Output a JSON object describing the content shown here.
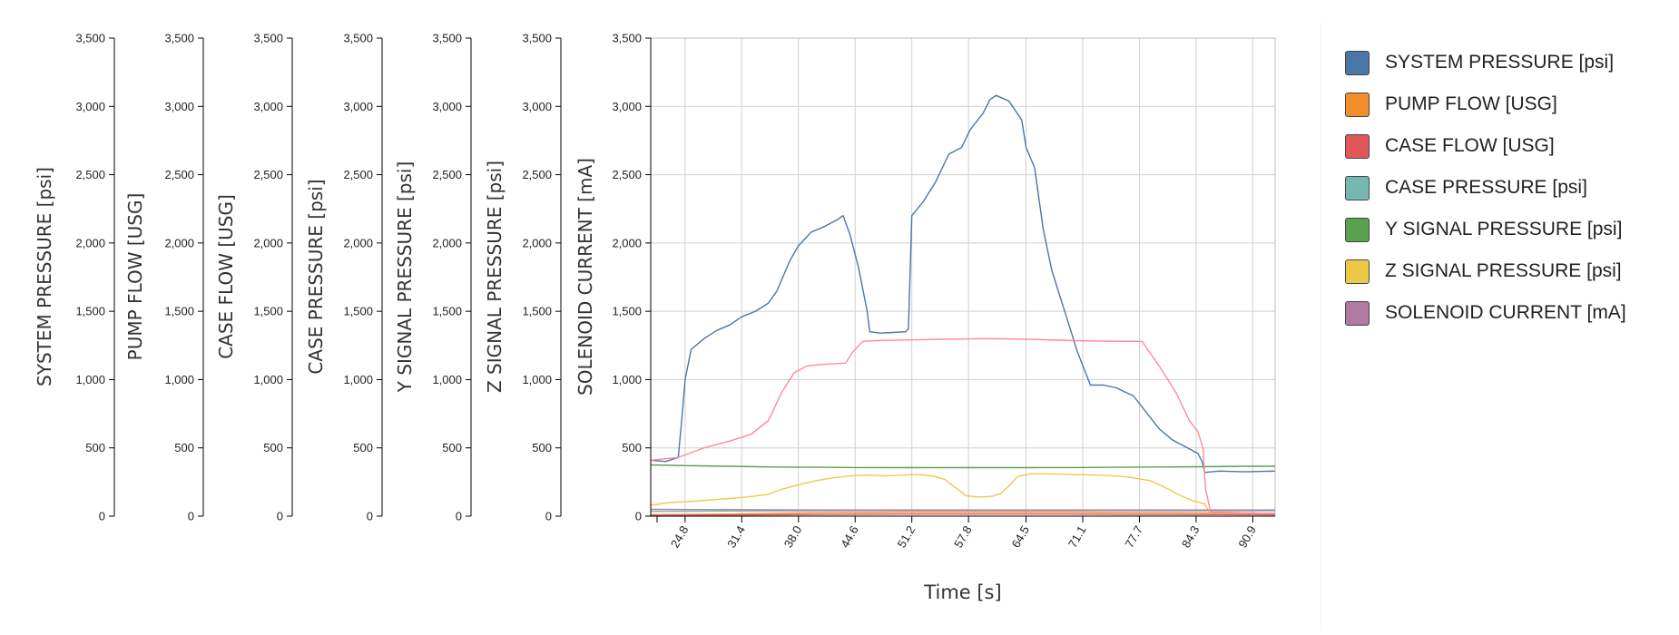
{
  "chart_data": {
    "type": "line",
    "xlabel": "Time [s]",
    "x_ticks": [
      "24.8",
      "31.4",
      "38.0",
      "44.6",
      "51.2",
      "57.8",
      "64.5",
      "71.1",
      "77.7",
      "84.3",
      "90.9"
    ],
    "xlim": [
      20.8,
      93.5
    ],
    "ylim": [
      0,
      3500
    ],
    "y_ticks": [
      "0",
      "500",
      "1,000",
      "1,500",
      "2,000",
      "2,500",
      "3,000",
      "3,500"
    ],
    "grid": true,
    "legend_position": "right",
    "y_axes": [
      {
        "label": "SYSTEM PRESSURE [psi]"
      },
      {
        "label": "PUMP FLOW [USG]"
      },
      {
        "label": "CASE FLOW [USG]"
      },
      {
        "label": "CASE PRESSURE [psi]"
      },
      {
        "label": "Y SIGNAL PRESSURE [psi]"
      },
      {
        "label": "Z SIGNAL PRESSURE [psi]"
      },
      {
        "label": "SOLENOID CURRENT [mA]"
      }
    ],
    "series": [
      {
        "name": "SYSTEM PRESSURE [psi]",
        "color": "#4a76a8",
        "x": [
          20.8,
          22.5,
          24.0,
          24.4,
          24.8,
          25.5,
          27.0,
          28.5,
          30.0,
          31.4,
          33.0,
          34.5,
          35.5,
          37.0,
          38.0,
          39.5,
          41.0,
          42.5,
          43.2,
          44.0,
          45.0,
          46.0,
          46.3,
          47.5,
          49.0,
          50.5,
          50.8,
          51.2,
          52.5,
          54.0,
          55.5,
          57.0,
          58.0,
          59.5,
          60.3,
          61.0,
          62.5,
          64.0,
          64.5,
          65.5,
          66.5,
          67.5,
          69.0,
          70.5,
          72.0,
          73.5,
          75.0,
          77.0,
          78.5,
          80.0,
          81.5,
          83.0,
          84.5,
          85.0,
          85.3,
          87.0,
          90.0,
          93.5
        ],
        "y": [
          410,
          400,
          430,
          700,
          1000,
          1220,
          1300,
          1360,
          1400,
          1460,
          1500,
          1560,
          1650,
          1870,
          1980,
          2080,
          2120,
          2170,
          2200,
          2060,
          1820,
          1500,
          1350,
          1340,
          1345,
          1350,
          1370,
          2200,
          2300,
          2450,
          2650,
          2700,
          2830,
          2950,
          3050,
          3080,
          3040,
          2900,
          2700,
          2550,
          2100,
          1800,
          1500,
          1200,
          960,
          960,
          940,
          880,
          760,
          640,
          560,
          510,
          460,
          400,
          320,
          330,
          325,
          330
        ]
      },
      {
        "name": "PUMP FLOW [USG]",
        "color": "#f28e2b",
        "x": [
          20.8,
          30,
          40,
          50,
          60,
          70,
          80,
          93.5
        ],
        "y": [
          10,
          15,
          25,
          30,
          30,
          30,
          25,
          20
        ]
      },
      {
        "name": "CASE FLOW [USG]",
        "color": "#e15759",
        "x": [
          20.8,
          30,
          40,
          50,
          60,
          70,
          80,
          93.5
        ],
        "y": [
          5,
          8,
          12,
          15,
          15,
          15,
          12,
          10
        ]
      },
      {
        "name": "CASE PRESSURE [psi]",
        "color": "#76b7b2",
        "x": [
          20.8,
          30,
          40,
          50,
          60,
          70,
          80,
          93.5
        ],
        "y": [
          35,
          38,
          40,
          42,
          42,
          42,
          40,
          40
        ]
      },
      {
        "name": "Y SIGNAL PRESSURE [psi]",
        "color": "#59a14f",
        "x": [
          20.8,
          25,
          30,
          35,
          40,
          45,
          50,
          55,
          60,
          65,
          70,
          75,
          80,
          85,
          90,
          93.5
        ],
        "y": [
          375,
          370,
          365,
          360,
          358,
          356,
          355,
          355,
          355,
          355,
          356,
          358,
          360,
          362,
          365,
          365
        ]
      },
      {
        "name": "Z SIGNAL PRESSURE [psi]",
        "color": "#edc948",
        "x": [
          20.8,
          23,
          26,
          29,
          32,
          34.5,
          36,
          38,
          40,
          42,
          44,
          46,
          48,
          50,
          52,
          53.5,
          55,
          56.5,
          57.5,
          59,
          60.5,
          61.5,
          62.5,
          63.5,
          65,
          67,
          70,
          73,
          76,
          79,
          81,
          82.5,
          84,
          85.3,
          85.8,
          93.5
        ],
        "y": [
          80,
          100,
          110,
          125,
          140,
          160,
          195,
          230,
          260,
          280,
          295,
          300,
          295,
          300,
          305,
          295,
          270,
          200,
          150,
          140,
          145,
          165,
          220,
          290,
          310,
          310,
          305,
          300,
          290,
          260,
          200,
          150,
          110,
          90,
          30,
          20
        ]
      },
      {
        "name": "SOLENOID CURRENT [mA]",
        "color": "#b07aa1",
        "x": [
          20.8,
          30,
          40,
          50,
          60,
          70,
          80,
          93.5
        ],
        "y": [
          50,
          48,
          45,
          45,
          45,
          45,
          45,
          45
        ]
      },
      {
        "name": "",
        "color": "#ff8a9a",
        "x": [
          20.8,
          24.0,
          27.0,
          30.0,
          32.5,
          34.5,
          36.0,
          37.5,
          39.0,
          40.5,
          42.0,
          43.5,
          44.3,
          45.5,
          47.0,
          50.0,
          55.0,
          60.0,
          65.0,
          70.0,
          75.0,
          78.0,
          80.0,
          82.0,
          83.5,
          84.5,
          85.1,
          85.4,
          86.0,
          93.5
        ],
        "y": [
          410,
          430,
          500,
          550,
          600,
          700,
          900,
          1050,
          1100,
          1110,
          1115,
          1120,
          1200,
          1280,
          1285,
          1290,
          1295,
          1300,
          1295,
          1285,
          1280,
          1280,
          1100,
          900,
          700,
          620,
          500,
          200,
          30,
          20
        ]
      }
    ]
  },
  "legend": {
    "items": [
      {
        "label": "SYSTEM PRESSURE [psi]",
        "color": "#4a76a8"
      },
      {
        "label": "PUMP FLOW [USG]",
        "color": "#f28e2b"
      },
      {
        "label": "CASE FLOW [USG]",
        "color": "#e15759"
      },
      {
        "label": "CASE PRESSURE [psi]",
        "color": "#76b7b2"
      },
      {
        "label": "Y SIGNAL PRESSURE [psi]",
        "color": "#59a14f"
      },
      {
        "label": "Z SIGNAL PRESSURE [psi]",
        "color": "#edc948"
      },
      {
        "label": "SOLENOID CURRENT [mA]",
        "color": "#b07aa1"
      }
    ]
  }
}
